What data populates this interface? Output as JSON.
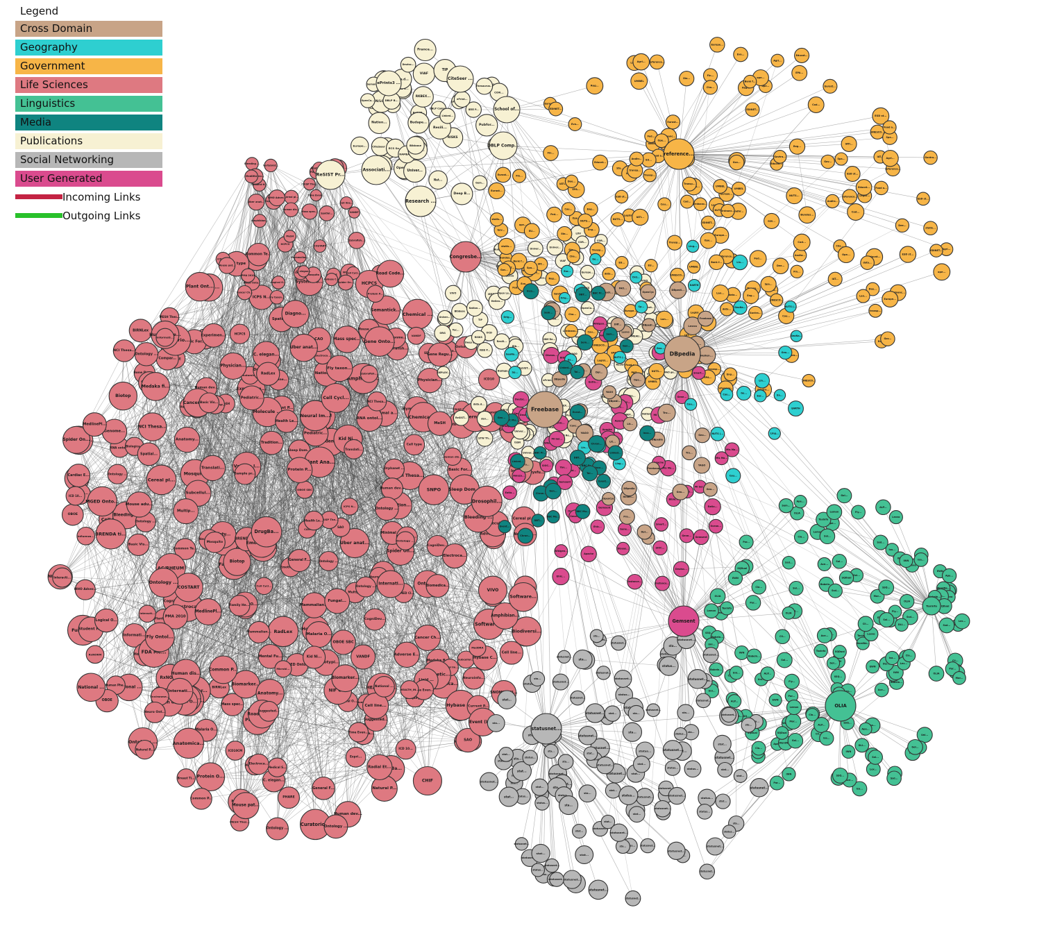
{
  "legend": {
    "title": "Legend",
    "categories": [
      {
        "key": "cross",
        "label": "Cross Domain",
        "color": "#C8A487"
      },
      {
        "key": "geo",
        "label": "Geography",
        "color": "#2ECFD0"
      },
      {
        "key": "gov",
        "label": "Government",
        "color": "#F7B547"
      },
      {
        "key": "life",
        "label": "Life Sciences",
        "color": "#DE7981"
      },
      {
        "key": "ling",
        "label": "Linguistics",
        "color": "#44C194"
      },
      {
        "key": "media",
        "label": "Media",
        "color": "#0F8480"
      },
      {
        "key": "pub",
        "label": "Publications",
        "color": "#F7F1D3"
      },
      {
        "key": "social",
        "label": "Social Networking",
        "color": "#B7B7B7"
      },
      {
        "key": "user",
        "label": "User Generated",
        "color": "#DA4B8E"
      }
    ],
    "links": [
      {
        "label": "Incoming Links",
        "color": "#C42343"
      },
      {
        "label": "Outgoing Links",
        "color": "#29C12B"
      }
    ]
  },
  "hubs": [
    {
      "label": "DBpedia",
      "category": "cross"
    },
    {
      "label": "Freebase",
      "category": "cross"
    },
    {
      "label": "reference...",
      "category": "gov"
    },
    {
      "label": "OLIA",
      "category": "ling"
    },
    {
      "label": "Congresbe...",
      "category": "life"
    },
    {
      "label": "Gemsent",
      "category": "user"
    },
    {
      "label": "statusnet...",
      "category": "social"
    },
    {
      "label": "Research ...",
      "category": "pub"
    },
    {
      "label": "CiteSeer ...",
      "category": "pub"
    },
    {
      "label": "DBLP Comp...",
      "category": "pub"
    },
    {
      "label": "Associati...",
      "category": "pub"
    },
    {
      "label": "ReSIST Pr...",
      "category": "pub"
    },
    {
      "label": "School of...",
      "category": "pub"
    },
    {
      "label": "ePrints3 ...",
      "category": "pub"
    },
    {
      "label": "Taxinfo",
      "category": "ling"
    }
  ],
  "lifeLabels": [
    "Basic For...",
    "Influenza...",
    "Ontology ...",
    "Cognitive...",
    "Gene Regu...",
    "Vaccine O...",
    "NIF Cell",
    "PHARE",
    "Sleep Dom...",
    "Chemical ...",
    "Protein O...",
    "Host Path...",
    "Electroca...",
    "Neuroinfo...",
    "Malaria O...",
    "Human dev...",
    "Neural Im...",
    "Infectio...",
    "Bone Dysp...",
    "CAO",
    "RxNORM",
    "NCI Thesa...",
    "Cancer Re...",
    "Biomedica...",
    "SNOMED Cl...",
    "Cardiac E...",
    "Current P...",
    "NIF Dysfu...",
    "Lipid ...",
    "Anatomy...",
    "Curatorio...",
    "BIRNLex",
    "Ontology ...",
    "Systems B...",
    "Adverse E...",
    "Mouse ...",
    "Common Te...",
    "NCBI orga...",
    "Phenotypi...",
    "Molecule ...",
    "HCPCS",
    "MeSH",
    "Mass spec...",
    "Amphibian...",
    "MGED Onto...",
    "Cereal pl...",
    "CRISP The...",
    "Experimen...",
    "Time Even...",
    "Cell type",
    "OBOE",
    "Spatial...",
    "Fly taxon...",
    "COSTART",
    "Human dis...",
    "Health Le...",
    "Cell line...",
    "FDA Me...",
    "MESH Thes...",
    "Uber anat...",
    "WHO Adver...",
    "VANDF",
    "Cancer Ch...",
    "Mosquito",
    "Bleeding ...",
    "Student H...",
    "Logical O...",
    "ICD 10...",
    "Cell Cycl...",
    "Hybase C...",
    "Zebrafish...",
    "Anatomica...",
    "Mouse pat...",
    "Spider On...",
    "Vertebrat...",
    "C. elegan...",
    "Human dev...",
    "MedDRA",
    "Mammalian...",
    "PMA 2010",
    "BRENDA ti...",
    "ICD10",
    "Physician...",
    "Mouse adu...",
    "Cell line...",
    "Natural P...",
    "Ontology ...",
    "AC/RHEUM",
    "HEALTH_IN...",
    "Family He...",
    "National ...",
    "ICD10CM",
    "Internati...",
    "Basic Vis...",
    "SNPO",
    "Minimal a...",
    "Plant Ana...",
    "Plant Ont...",
    "Human Phe...",
    "Environme...",
    "Drosophil...",
    "Medaka fi...",
    "Road Code...",
    "National ...",
    "Suggested...",
    "Breast Ti...",
    "General F...",
    "Tradition...",
    "Pediatric...",
    "Mental Fu...",
    "SNP Ontol...",
    "RNA ontol...",
    "Semantick...",
    "Biomarker...",
    "NCBIFTD",
    "RadLex",
    "MedlinePl...",
    "Subcellul...",
    "OBOE SBC",
    "CogniDev...",
    "Informati...",
    "Gene Onto...",
    "Neural Im...",
    "Human dev...",
    "Translati...",
    "VIVO",
    "Emotion O...",
    "Ontology ...",
    "Internati...",
    "Software...",
    "Fungal...",
    "Multip...",
    "Common P...",
    "Compar...",
    "Interacti...",
    "Neuro Ont...",
    "Electroca...",
    "Ontology ...",
    "SAO",
    "Sample pr...",
    "DrugBa...",
    "Event (IM...",
    "Ontology ...",
    "NCI Thesa...",
    "Fly Ontol...",
    "Biotop",
    "Kid Ni...",
    "ICPS N...",
    "Radial Et...",
    "Protein P...",
    "Diagno...",
    "Microbi...",
    "Vertebr...",
    "Vaccine I...",
    "Medical S...",
    "Trick gl...",
    "Biologica...",
    "Ontolo...",
    "Online Ma...",
    "Orphanet ...",
    "Hymenopte...",
    "Synthetic...",
    "Ontology ...",
    "Apoptosis...",
    "CHIF",
    "Biodiversi...",
    "Expri...",
    "Dicty...",
    "SDTM",
    "Genome..."
  ],
  "pubLabels": [
    "LAAS C...",
    "Univer...",
    "ePrints3 ...",
    "CiteSeer ...",
    "ReSIST...",
    "DEPLOY...",
    "IBM Re...",
    "Nation...",
    "UK JIS...",
    "RKBEX...",
    "Univer...",
    "Budape...",
    "RISKS",
    "ReSIST...",
    "Open A...",
    "IEEE P...",
    "Resili...",
    "COR...",
    "Univer...",
    "Pubfor...",
    "France...",
    "ePrint...",
    "Deep B...",
    "ECS So...",
    "Divers...",
    "DBLP Comp...",
    "Tec...",
    "Librar...",
    "Nat...",
    "MARC C...",
    "UN/LOC...",
    "RAMEAU...",
    "IEEE V...",
    "Linked...",
    "Veroj...",
    "data.d...",
    "Semanti...",
    "STW Th...",
    "Thesaurus...",
    "OpenCa...",
    "Europe...",
    "DBLP B...",
    "Deutsc...",
    "VIAF",
    "Linked...",
    "TIP",
    "Gem...",
    "Bibbase",
    "LCSH",
    "datos...",
    "VIVO",
    "ORG",
    "LOD2 P...",
    "Wiki...",
    "Hellen...",
    "YAGO",
    "OCD",
    "FAO ge...",
    "Open Le...",
    "Planet...",
    "LOV",
    "Lexvo",
    "Rub...",
    "Bib...",
    "Lib...",
    "ISSN",
    "SEMI...",
    "GND",
    "VIVO",
    "FOO...",
    "Cha...",
    "dev...",
    "Univer...",
    "Libra..."
  ],
  "govLabels": [
    "statis...",
    "reference...",
    "ope...",
    "Ope...",
    "EPA...",
    "data...",
    "Eurost...",
    "Legisl...",
    "ESD st...",
    "UMBEL",
    "Agri...",
    "transp...",
    "UNESCO...",
    "NUTS...",
    "Europe...",
    "Andhr...",
    "Cou...",
    "Food a...",
    "Bank f...",
    "EDINET...",
    "Bundes...",
    "Sta...",
    "Lan...",
    "Gov...",
    "Fin...",
    "Ordnanc...",
    "Transp...",
    "Govtra...",
    "Educat...",
    "Dee...",
    "EU...",
    "Eng...",
    "Reg...",
    "Cod...",
    "Eva...",
    "IAT...",
    "IATI...",
    "Spa...",
    "Cha...",
    "Fed..."
  ],
  "lingLabels": [
    "OLIA",
    "Taxinfo",
    "WordNe...",
    "Babeln...",
    "Lexvo",
    "EWN",
    "Ape...",
    "Uni...",
    "Lex...",
    "ALP...",
    "Gol...",
    "Par...",
    "Isa...",
    "IWN",
    "Cla...",
    "Sal...",
    "Ssd...",
    "SSQ...",
    "SQDual",
    "Mor...",
    "Fly...",
    "Lemon",
    "Ace...",
    "Cli...",
    "DLI...",
    "Sem..."
  ],
  "socialLabels": [
    "statusnet...",
    "status...",
    "statusnet...",
    "sta...",
    "stat..."
  ],
  "userLabels": [
    "Gemsent",
    "Apache",
    "MI bel...",
    "Wikigen...",
    "Smart...",
    "Diseas...",
    "Gene...",
    "Fid...",
    "Deutsc...",
    "Eatla...",
    "Bible...",
    "Instance...",
    "Amazo...",
    "SIOC...",
    "Ehic...",
    "Yov...",
    "Mis Ma...",
    "Ocean..."
  ],
  "crossLabels": [
    "DBpedia",
    "Freebase",
    "OpenCyc",
    "YAGO",
    "Hellen...",
    "Geo...",
    "Ope...",
    "Lexvo",
    "FAO...",
    "Diff...",
    "Lit...",
    "Conc...",
    "DBpedi...",
    "DBpedi...",
    "Pro...",
    "Tro...",
    "Dpi..."
  ],
  "geoLabels": [
    "NUTS (...",
    "Orig...",
    "EARTH",
    "GeoNa...",
    "Geo...",
    "Ling...",
    "Ord...",
    "Lin...",
    "Cou...",
    "Ear...",
    "Ea...",
    "Ge...",
    "Sp..."
  ],
  "mediaLabels": [
    "BBC Pr...",
    "BBC Mu...",
    "Linked...",
    "Event...",
    "Inco...",
    "DBT...",
    "Chron...",
    "Gen...",
    "Tal...",
    "Sem..."
  ]
}
